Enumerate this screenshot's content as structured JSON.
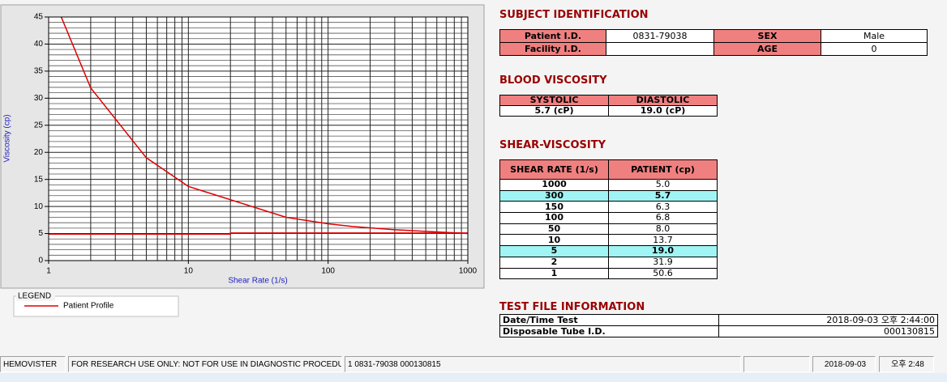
{
  "chart_data": {
    "type": "line",
    "x_label": "Shear Rate (1/s)",
    "y_label": "Viscosity (cp)",
    "xscale": "log",
    "xlim": [
      1,
      1000
    ],
    "ylim": [
      0,
      45
    ],
    "xticks": [
      1,
      10,
      100,
      1000
    ],
    "yticks": [
      0,
      5,
      10,
      15,
      20,
      25,
      30,
      35,
      40,
      45
    ],
    "x_minor_ticks": [
      2,
      3,
      4,
      5,
      6,
      7,
      8,
      9,
      20,
      30,
      40,
      50,
      60,
      70,
      80,
      90,
      200,
      300,
      400,
      500,
      600,
      700,
      800,
      900
    ],
    "y_minor_ticks": [
      1,
      2,
      3,
      4,
      6,
      7,
      8,
      9,
      11,
      12,
      13,
      14,
      16,
      17,
      18,
      19,
      21,
      22,
      23,
      24,
      26,
      27,
      28,
      29,
      31,
      32,
      33,
      34,
      36,
      37,
      38,
      39,
      41,
      42,
      43,
      44
    ],
    "grid": true,
    "legend_title": "LEGEND",
    "series": [
      {
        "name": "Patient Profile",
        "color": "#e00000",
        "x": [
          1,
          2,
          5,
          10,
          50,
          100,
          150,
          300,
          1000
        ],
        "values": [
          50.6,
          31.9,
          19.0,
          13.7,
          8.0,
          6.8,
          6.3,
          5.7,
          5.0
        ]
      },
      {
        "color": "#e00000",
        "x": [
          1,
          20,
          20,
          1000
        ],
        "values": [
          4.9,
          4.9,
          5.1,
          5.1
        ]
      }
    ]
  },
  "subject_identification": {
    "title": "SUBJECT IDENTIFICATION",
    "rows": [
      [
        "Patient I.D.",
        "0831-79038",
        "SEX",
        "Male"
      ],
      [
        "Facility I.D.",
        null,
        "AGE",
        "0"
      ]
    ]
  },
  "blood_viscosity": {
    "title": "BLOOD VISCOSITY",
    "header": [
      "SYSTOLIC",
      "DIASTOLIC"
    ],
    "rows": [
      [
        "5.7 (cP)",
        "19.0 (cP)"
      ]
    ]
  },
  "shear_viscosity": {
    "title": "SHEAR-VISCOSITY",
    "header": [
      "SHEAR RATE (1/s)",
      "PATIENT (cp)"
    ],
    "highlight_color": "#a0f4f4",
    "highlighted_rows": [
      1,
      6
    ],
    "rows": [
      [
        "1000",
        "5.0"
      ],
      [
        "300",
        "5.7"
      ],
      [
        "150",
        "6.3"
      ],
      [
        "100",
        "6.8"
      ],
      [
        "50",
        "8.0"
      ],
      [
        "10",
        "13.7"
      ],
      [
        "5",
        "19.0"
      ],
      [
        "2",
        "31.9"
      ],
      [
        "1",
        "50.6"
      ]
    ]
  },
  "test_file_information": {
    "title": "TEST FILE INFORMATION",
    "rows": [
      [
        "Date/Time Test",
        "2018-09-03  오후 2:44:00"
      ],
      [
        "Disposable Tube I.D.",
        "000130815"
      ]
    ]
  },
  "status_bar": [
    "HEMOVISTER",
    "FOR RESEARCH USE ONLY: NOT FOR USE IN DIAGNOSTIC PROCEDURES",
    "1  0831-79038  000130815",
    null,
    "2018-09-03",
    "오후 2:48"
  ]
}
